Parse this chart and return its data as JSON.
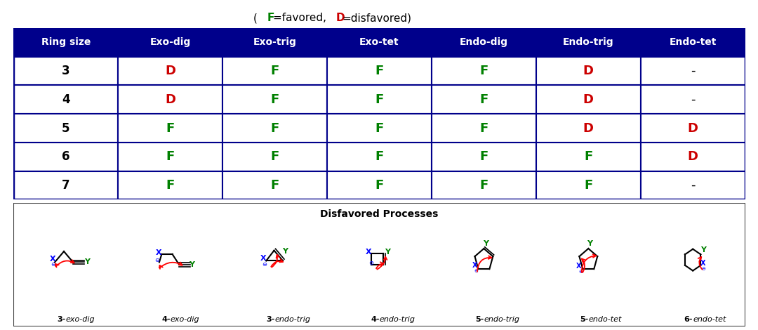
{
  "header": [
    "Ring size",
    "Exo-dig",
    "Exo-trig",
    "Exo-tet",
    "Endo-dig",
    "Endo-trig",
    "Endo-tet"
  ],
  "header_bg": "#00008B",
  "header_text_color": "#FFFFFF",
  "rows": [
    [
      "3",
      "D",
      "F",
      "F",
      "F",
      "D",
      "-"
    ],
    [
      "4",
      "D",
      "F",
      "F",
      "F",
      "D",
      "-"
    ],
    [
      "5",
      "F",
      "F",
      "F",
      "F",
      "D",
      "D"
    ],
    [
      "6",
      "F",
      "F",
      "F",
      "F",
      "F",
      "D"
    ],
    [
      "7",
      "F",
      "F",
      "F",
      "F",
      "F",
      "-"
    ]
  ],
  "cell_colors": {
    "F": "#008000",
    "D": "#CC0000",
    "-": "#000000"
  },
  "border_color": "#00008B",
  "disfavored_title": "Disfavored Processes",
  "disfavored_labels": [
    "3-exo-dig",
    "4-exo-dig",
    "3-endo-trig",
    "4-endo-trig",
    "5-endo-trig",
    "5-endo-tet",
    "6-endo-tet"
  ],
  "background": "#FFFFFF",
  "title_parts": [
    {
      "text": "(",
      "color": "#000000",
      "bold": false
    },
    {
      "text": "F",
      "color": "#008000",
      "bold": true
    },
    {
      "text": "=favored, ",
      "color": "#000000",
      "bold": false
    },
    {
      "text": "D",
      "color": "#CC0000",
      "bold": true
    },
    {
      "text": "=disfavored)",
      "color": "#000000",
      "bold": false
    }
  ]
}
